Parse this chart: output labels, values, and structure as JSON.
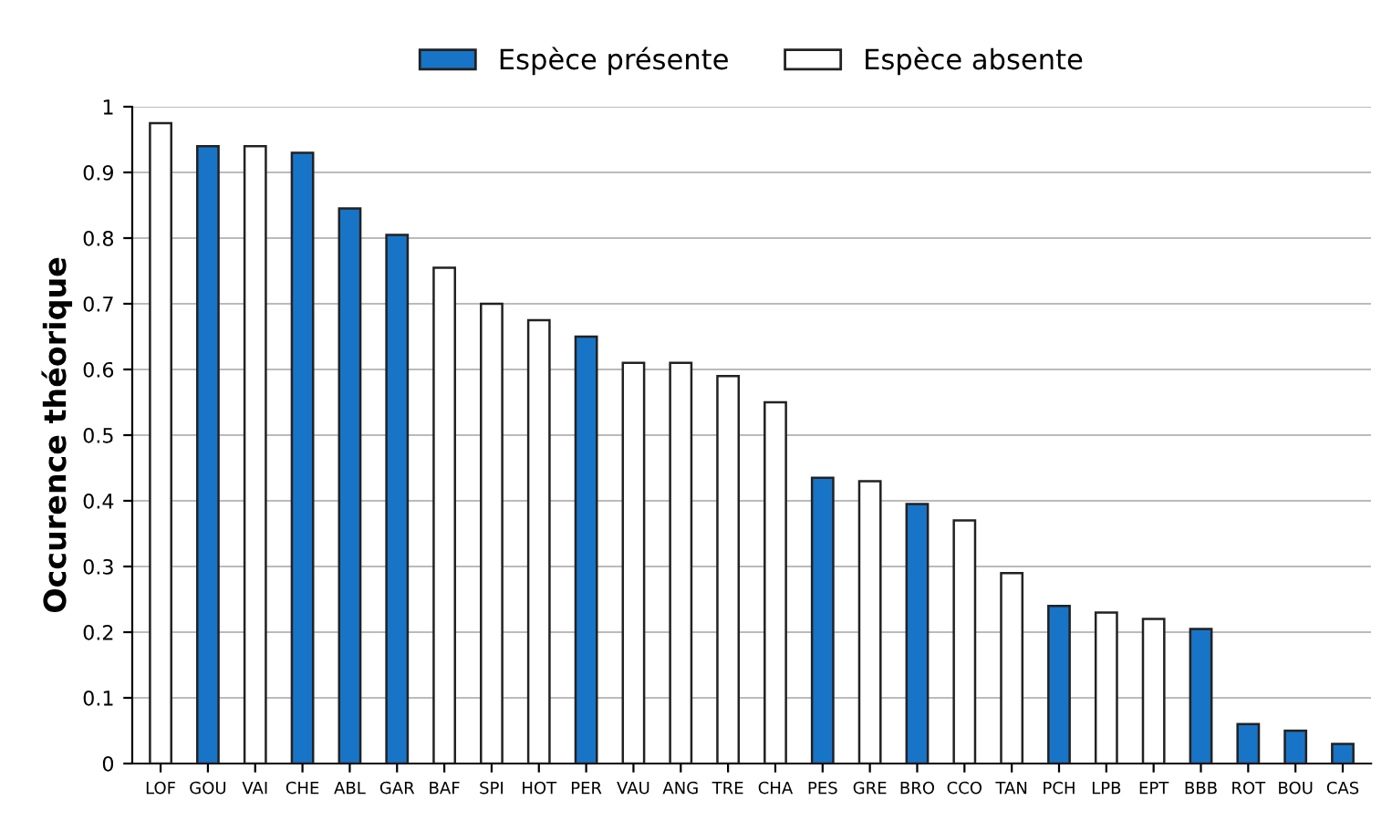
{
  "chart_data": {
    "type": "bar",
    "ylabel": "Occurence théorique",
    "categories": [
      "LOF",
      "GOU",
      "VAI",
      "CHE",
      "ABL",
      "GAR",
      "BAF",
      "SPI",
      "HOT",
      "PER",
      "VAU",
      "ANG",
      "TRE",
      "CHA",
      "PES",
      "GRE",
      "BRO",
      "CCO",
      "TAN",
      "PCH",
      "LPB",
      "EPT",
      "BBB",
      "ROT",
      "BOU",
      "CAS"
    ],
    "series": [
      {
        "name": "Espèce présente",
        "color": "#1874c6",
        "values": [
          null,
          0.94,
          null,
          0.93,
          0.845,
          0.805,
          null,
          null,
          null,
          0.65,
          null,
          null,
          null,
          null,
          0.435,
          null,
          0.395,
          null,
          null,
          0.24,
          null,
          null,
          0.205,
          0.06,
          0.05,
          0.03
        ]
      },
      {
        "name": "Espèce absente",
        "color": "#ffffff",
        "values": [
          0.975,
          null,
          0.94,
          null,
          null,
          null,
          0.755,
          0.7,
          0.675,
          null,
          0.61,
          0.61,
          0.59,
          0.55,
          null,
          0.43,
          null,
          0.37,
          0.29,
          null,
          0.23,
          0.22,
          null,
          null,
          null,
          null
        ]
      }
    ],
    "ylim": [
      0,
      1
    ],
    "yticks": [
      0,
      0.1,
      0.2,
      0.3,
      0.4,
      0.5,
      0.6,
      0.7,
      0.8,
      0.9,
      1
    ],
    "grid": "y",
    "legend": "top"
  }
}
